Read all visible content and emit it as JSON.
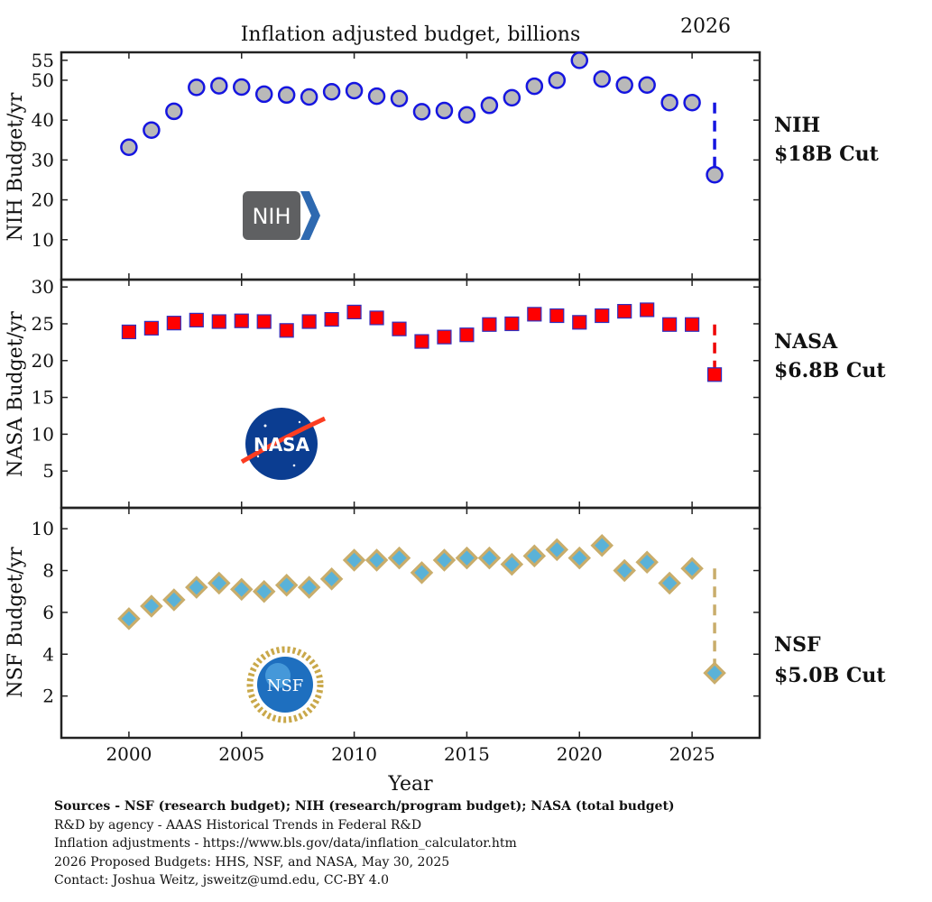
{
  "chart_data": {
    "type": "scatter",
    "title": "Inflation adjusted budget, billions",
    "corner_label": "2026",
    "xlabel": "Year",
    "xlim": [
      1997,
      2028
    ],
    "xticks": [
      2000,
      2005,
      2010,
      2015,
      2020,
      2025
    ],
    "grid": false,
    "panels": [
      {
        "key": "nih",
        "ylabel": "NIH Budget/yr",
        "ylim": [
          0,
          57
        ],
        "yticks": [
          10,
          20,
          30,
          40,
          50,
          55
        ],
        "marker": "circle",
        "fill_color": "#b9b9b9",
        "stroke_color": "#1515e0",
        "dash_color": "#1515e0",
        "x": [
          2000,
          2001,
          2002,
          2003,
          2004,
          2005,
          2006,
          2007,
          2008,
          2009,
          2010,
          2011,
          2012,
          2013,
          2014,
          2015,
          2016,
          2017,
          2018,
          2019,
          2020,
          2021,
          2022,
          2023,
          2024,
          2025
        ],
        "values": [
          33.2,
          37.5,
          42.2,
          48.2,
          48.6,
          48.3,
          46.5,
          46.3,
          45.8,
          47.1,
          47.4,
          46.0,
          45.4,
          42.1,
          42.4,
          41.3,
          43.7,
          45.6,
          48.5,
          50.0,
          55.0,
          50.3,
          48.8,
          48.8,
          44.4,
          44.4
        ],
        "projection": {
          "x": 2026,
          "value": 26.3,
          "from": 44.4
        },
        "label_line1": "NIH",
        "label_line2": "$18B Cut",
        "logo_text": "NIH"
      },
      {
        "key": "nasa",
        "ylabel": "NASA Budget/yr",
        "ylim": [
          0,
          31
        ],
        "yticks": [
          5,
          10,
          15,
          20,
          25,
          30
        ],
        "marker": "square",
        "fill_color": "#ff0000",
        "stroke_color": "#3030c0",
        "dash_color": "#ee0000",
        "x": [
          2000,
          2001,
          2002,
          2003,
          2004,
          2005,
          2006,
          2007,
          2008,
          2009,
          2010,
          2011,
          2012,
          2013,
          2014,
          2015,
          2016,
          2017,
          2018,
          2019,
          2020,
          2021,
          2022,
          2023,
          2024,
          2025
        ],
        "values": [
          23.9,
          24.4,
          25.1,
          25.5,
          25.3,
          25.4,
          25.3,
          24.1,
          25.3,
          25.6,
          26.6,
          25.8,
          24.3,
          22.6,
          23.2,
          23.5,
          24.9,
          25.0,
          26.3,
          26.1,
          25.2,
          26.1,
          26.7,
          26.9,
          24.9,
          24.9
        ],
        "projection": {
          "x": 2026,
          "value": 18.1,
          "from": 24.9
        },
        "label_line1": "NASA",
        "label_line2": "$6.8B Cut",
        "logo_text": "NASA"
      },
      {
        "key": "nsf",
        "ylabel": "NSF Budget/yr",
        "ylim": [
          0,
          11
        ],
        "yticks": [
          2,
          4,
          6,
          8,
          10
        ],
        "marker": "diamond",
        "fill_color": "#5ab2d8",
        "stroke_color": "#c9ad6b",
        "dash_color": "#c9ad6b",
        "x": [
          2000,
          2001,
          2002,
          2003,
          2004,
          2005,
          2006,
          2007,
          2008,
          2009,
          2010,
          2011,
          2012,
          2013,
          2014,
          2015,
          2016,
          2017,
          2018,
          2019,
          2020,
          2021,
          2022,
          2023,
          2024,
          2025
        ],
        "values": [
          5.7,
          6.3,
          6.6,
          7.2,
          7.4,
          7.1,
          7.0,
          7.3,
          7.2,
          7.6,
          8.5,
          8.5,
          8.6,
          7.9,
          8.5,
          8.6,
          8.6,
          8.3,
          8.7,
          9.0,
          8.6,
          9.2,
          8.0,
          8.4,
          7.4,
          8.1
        ],
        "projection": {
          "x": 2026,
          "value": 3.1,
          "from": 8.1
        },
        "label_line1": "NSF",
        "label_line2": "$5.0B Cut",
        "logo_text": "NSF"
      }
    ]
  },
  "sources": {
    "line1": "Sources - NSF (research budget); NIH (research/program budget); NASA (total budget)",
    "line2": "R&D by agency - AAAS Historical Trends in Federal R&D",
    "line3": "Inflation adjustments - https://www.bls.gov/data/inflation_calculator.htm",
    "line4": "2026 Proposed Budgets: HHS, NSF, and NASA, May 30, 2025",
    "line5": "Contact: Joshua Weitz, jsweitz@umd.edu, CC-BY 4.0"
  }
}
